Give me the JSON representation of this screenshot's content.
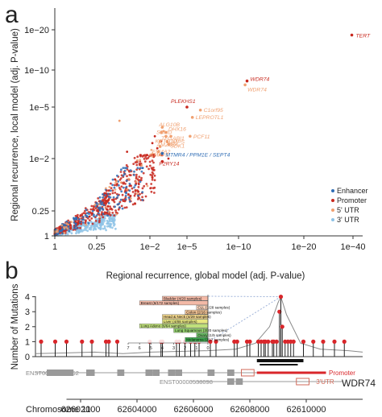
{
  "chart_data": [
    {
      "type": "scatter",
      "panel_label": "a",
      "xlabel": "Regional recurrence, global model (adj. P-value)",
      "ylabel": "Regional recurrence, local model (adj. P-value)",
      "x_scale": "log",
      "y_scale": "log",
      "x_ticks": [
        {
          "value": 1,
          "label": "1"
        },
        {
          "value": 0.25,
          "label": "0.25"
        },
        {
          "value": 0.01,
          "label": "1e−2"
        },
        {
          "value": 1e-05,
          "label": "1e−5"
        },
        {
          "value": 1e-10,
          "label": "1e−10"
        },
        {
          "value": 1e-20,
          "label": "1e−20"
        },
        {
          "value": 1e-40,
          "label": "1e−40"
        }
      ],
      "y_ticks": [
        {
          "value": 1,
          "label": "1"
        },
        {
          "value": 0.25,
          "label": "0.25"
        },
        {
          "value": 0.01,
          "label": "1e−2"
        },
        {
          "value": 1e-05,
          "label": "1e−5"
        },
        {
          "value": 1e-10,
          "label": "1e−10"
        },
        {
          "value": 1e-20,
          "label": "1e−20"
        }
      ],
      "legend_position": "bottom-right",
      "legend": [
        {
          "name": "Enhancer",
          "color": "#2f6db5"
        },
        {
          "name": "Promoter",
          "color": "#c8281e"
        },
        {
          "name": "5' UTR",
          "color": "#f0a070"
        },
        {
          "name": "3' UTR",
          "color": "#8ec3e6"
        }
      ],
      "labeled_points": [
        {
          "name": "TERT",
          "category": "Promoter",
          "x": 3e-40,
          "y": 2e-19
        },
        {
          "name": "WDR74",
          "category": "Promoter",
          "x": 5e-12,
          "y": 3e-09
        },
        {
          "name": "WDR74",
          "category": "5' UTR",
          "x": 1e-11,
          "y": 1e-08
        },
        {
          "name": "PLEKHS1",
          "category": "Promoter",
          "x": 1e-05,
          "y": 1e-05
        },
        {
          "name": "C1orf95",
          "category": "5' UTR",
          "x": 5e-07,
          "y": 1.5e-05
        },
        {
          "name": "LEPROTL1",
          "category": "5' UTR",
          "x": 3e-06,
          "y": 4e-05
        },
        {
          "name": "ALG10B",
          "category": "5' UTR",
          "x": 0.001,
          "y": 0.00015
        },
        {
          "name": "SDHD",
          "category": "5' UTR",
          "x": 0.0012,
          "y": 0.0003
        },
        {
          "name": "DHX16",
          "category": "5' UTR",
          "x": 0.0005,
          "y": 0.0003
        },
        {
          "name": "PCF11",
          "category": "5' UTR",
          "x": 5e-06,
          "y": 0.0005
        },
        {
          "name": "TFG",
          "category": "5' UTR",
          "x": 0.0005,
          "y": 0.0005
        },
        {
          "name": "ABI1",
          "category": "5' UTR",
          "x": 0.0002,
          "y": 0.0005
        },
        {
          "name": "KDTO10",
          "category": "5' UTR",
          "x": 0.0015,
          "y": 0.001
        },
        {
          "name": "UMPS",
          "category": "5' UTR",
          "x": 0.0004,
          "y": 0.001
        },
        {
          "name": "SDK1",
          "category": "5' UTR",
          "x": 0.0003,
          "y": 0.0015
        },
        {
          "name": "AMZ38A",
          "category": "5' UTR",
          "x": 0.0015,
          "y": 0.002
        },
        {
          "name": "EIF4A2",
          "category": "5' UTR",
          "x": 0.002,
          "y": 0.004
        },
        {
          "name": "MAP1",
          "category": "5' UTR",
          "x": 0.0015,
          "y": 0.006
        },
        {
          "name": "MTMR4 / PPM1E / SEPT4",
          "category": "Enhancer",
          "x": 0.001,
          "y": 0.005
        },
        {
          "name": "P2RY14",
          "category": "Promoter",
          "x": 0.001,
          "y": 0.012
        }
      ],
      "background_series": [
        {
          "name": "Enhancer",
          "x_range": [
            1,
            0.02
          ],
          "y_range": [
            1,
            0.02
          ]
        },
        {
          "name": "Promoter",
          "x_range": [
            1,
            0.01
          ],
          "y_range": [
            1,
            0.01
          ]
        },
        {
          "name": "3' UTR",
          "x_range": [
            1,
            0.1
          ],
          "y_range": [
            1,
            0.3
          ]
        }
      ]
    },
    {
      "type": "lollipop",
      "panel_label": "b",
      "ylabel": "Number of Mutations",
      "ylim": [
        0,
        4
      ],
      "y_ticks": [
        0,
        1,
        2,
        3,
        4
      ],
      "xlabel": "Chromosome 11",
      "x_ticks": [
        {
          "value": 62602000,
          "label": "62602000"
        },
        {
          "value": 62604000,
          "label": "62604000"
        },
        {
          "value": 62606000,
          "label": "62606000"
        },
        {
          "value": 62608000,
          "label": "62608000"
        },
        {
          "value": 62610000,
          "label": "62610000"
        }
      ],
      "xlim": [
        62600400,
        62612000
      ],
      "mutations": [
        {
          "x": 62600600,
          "count": 1
        },
        {
          "x": 62601100,
          "count": 1
        },
        {
          "x": 62601500,
          "count": 1
        },
        {
          "x": 62602050,
          "count": 1
        },
        {
          "x": 62602400,
          "count": 1
        },
        {
          "x": 62602900,
          "count": 1
        },
        {
          "x": 62603000,
          "count": 1
        },
        {
          "x": 62603300,
          "count": 1
        },
        {
          "x": 62604450,
          "count": 1
        },
        {
          "x": 62604850,
          "count": 1
        },
        {
          "x": 62604900,
          "count": 1
        },
        {
          "x": 62605400,
          "count": 1
        },
        {
          "x": 62605500,
          "count": 1
        },
        {
          "x": 62605700,
          "count": 1
        },
        {
          "x": 62605900,
          "count": 1
        },
        {
          "x": 62606050,
          "count": 1
        },
        {
          "x": 62606200,
          "count": 1
        },
        {
          "x": 62606600,
          "count": 1
        },
        {
          "x": 62606800,
          "count": 1
        },
        {
          "x": 62607450,
          "count": 1
        },
        {
          "x": 62607550,
          "count": 1
        },
        {
          "x": 62607900,
          "count": 1
        },
        {
          "x": 62608000,
          "count": 1
        },
        {
          "x": 62608300,
          "count": 1
        },
        {
          "x": 62608400,
          "count": 1
        },
        {
          "x": 62608500,
          "count": 1
        },
        {
          "x": 62608550,
          "count": 1
        },
        {
          "x": 62608650,
          "count": 1
        },
        {
          "x": 62608800,
          "count": 1
        },
        {
          "x": 62608850,
          "count": 1
        },
        {
          "x": 62608950,
          "count": 1
        },
        {
          "x": 62609050,
          "count": 3
        },
        {
          "x": 62609100,
          "count": 4
        },
        {
          "x": 62609150,
          "count": 2
        },
        {
          "x": 62609250,
          "count": 1
        },
        {
          "x": 62609350,
          "count": 1
        },
        {
          "x": 62609450,
          "count": 1
        },
        {
          "x": 62609550,
          "count": 1
        },
        {
          "x": 62609900,
          "count": 1
        },
        {
          "x": 62610250,
          "count": 1
        },
        {
          "x": 62610600,
          "count": 1
        },
        {
          "x": 62611000,
          "count": 1
        },
        {
          "x": 62611350,
          "count": 1
        }
      ],
      "density_curve": {
        "x": [
          62600400,
          62601500,
          62602500,
          62603500,
          62604500,
          62605500,
          62606500,
          62607500,
          62608200,
          62608700,
          62609000,
          62609100,
          62609300,
          62609800,
          62610500,
          62611500,
          62612000
        ],
        "y": [
          0.2,
          0.25,
          0.3,
          0.2,
          0.3,
          0.35,
          0.4,
          0.5,
          0.9,
          2.0,
          3.6,
          4.0,
          2.8,
          0.9,
          0.5,
          0.4,
          0.3
        ]
      },
      "inset": {
        "type": "bar",
        "orientation": "horizontal",
        "reversed_axis": true,
        "x_ticks": [
          7,
          6,
          5,
          4,
          3,
          2,
          1,
          0
        ],
        "xlim": [
          7,
          0
        ],
        "categories": [
          "Bladder (4/20 samples)",
          "Breast (6/172 samples)",
          "CLL (1/28 samples)",
          "Colon (2/16 samples)",
          "Head & Neck (4/29 samples)",
          "Liver (4/88 samples)",
          "Lung Adeno (6/64 samples)",
          "Lung Squamous (3/20 samples)",
          "Ovary (1/5 samples)",
          "Melanoma (2/17 samples)"
        ],
        "values": [
          4,
          6,
          1,
          2,
          4,
          4,
          6,
          3,
          1,
          2
        ],
        "colors": [
          "#f3b9a6",
          "#f3b9a6",
          "#f6d0b8",
          "#f2c293",
          "#f0d489",
          "#e9e780",
          "#bfe07a",
          "#94d26e",
          "#6cc266",
          "#3ba94c"
        ]
      },
      "tracks": [
        {
          "label": "ENST00000525752",
          "start": 62600400,
          "end": 62609300
        },
        {
          "label": "ENST00000538098",
          "start": 62605900,
          "end": 62611300
        }
      ],
      "annotations": {
        "promoter": "Promoter",
        "utr3": "3'UTR",
        "gene": "WDR74"
      }
    }
  ]
}
